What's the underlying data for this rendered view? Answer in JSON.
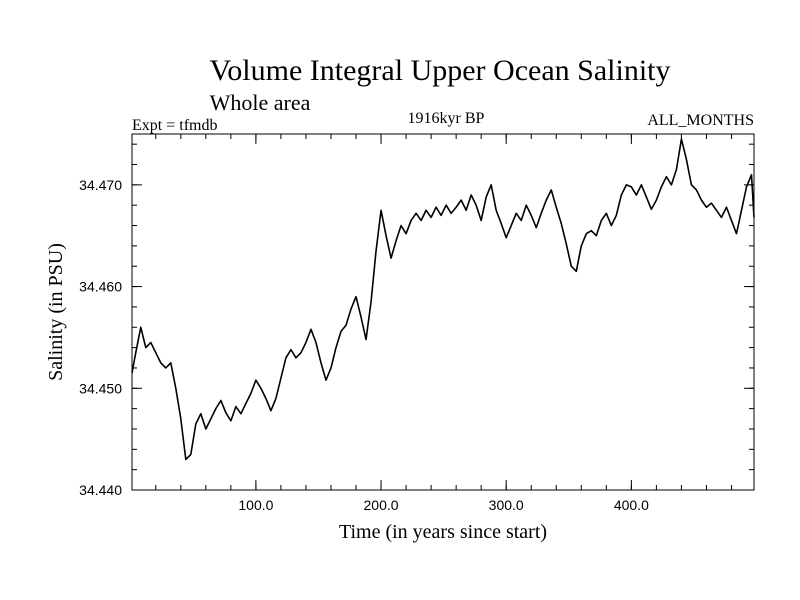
{
  "chart_data": {
    "type": "line",
    "title": "Volume Integral Upper Ocean Salinity",
    "subtitle": "Whole area",
    "left_label": "Expt = tfmdb",
    "center_label": "1916kyr BP",
    "right_label": "ALL_MONTHS",
    "xlabel": "Time (in years since start)",
    "ylabel": "Salinity (in PSU)",
    "xlim": [
      1,
      498
    ],
    "ylim": [
      34.44,
      34.475
    ],
    "xticks": [
      100,
      200,
      300,
      400
    ],
    "xtick_labels": [
      "100.0",
      "200.0",
      "300.0",
      "400.0"
    ],
    "yticks": [
      34.44,
      34.45,
      34.46,
      34.47
    ],
    "ytick_labels": [
      "34.440",
      "34.450",
      "34.460",
      "34.470"
    ],
    "series": [
      {
        "name": "salinity",
        "x": [
          1,
          4,
          8,
          12,
          16,
          20,
          24,
          28,
          32,
          36,
          40,
          44,
          48,
          52,
          56,
          60,
          64,
          68,
          72,
          76,
          80,
          84,
          88,
          92,
          96,
          100,
          104,
          108,
          112,
          116,
          120,
          124,
          128,
          132,
          136,
          140,
          144,
          148,
          152,
          156,
          160,
          164,
          168,
          172,
          176,
          180,
          184,
          188,
          192,
          196,
          200,
          204,
          208,
          212,
          216,
          220,
          224,
          228,
          232,
          236,
          240,
          244,
          248,
          252,
          256,
          260,
          264,
          268,
          272,
          276,
          280,
          284,
          288,
          292,
          296,
          300,
          304,
          308,
          312,
          316,
          320,
          324,
          328,
          332,
          336,
          340,
          344,
          348,
          352,
          356,
          360,
          364,
          368,
          372,
          376,
          380,
          384,
          388,
          392,
          396,
          400,
          404,
          408,
          412,
          416,
          420,
          424,
          428,
          432,
          436,
          440,
          444,
          448,
          452,
          456,
          460,
          464,
          468,
          472,
          476,
          480,
          484,
          488,
          492,
          496,
          498
        ],
        "values": [
          34.4515,
          34.4535,
          34.456,
          34.454,
          34.4545,
          34.4535,
          34.4525,
          34.452,
          34.4525,
          34.45,
          34.447,
          34.443,
          34.4435,
          34.4465,
          34.4475,
          34.446,
          34.447,
          34.448,
          34.4488,
          34.4476,
          34.4468,
          34.4482,
          34.4475,
          34.4485,
          34.4495,
          34.4508,
          34.45,
          34.449,
          34.4478,
          34.449,
          34.451,
          34.453,
          34.4538,
          34.453,
          34.4535,
          34.4545,
          34.4558,
          34.4545,
          34.4525,
          34.4508,
          34.452,
          34.454,
          34.4556,
          34.4562,
          34.4578,
          34.459,
          34.457,
          34.4548,
          34.4585,
          34.4635,
          34.4675,
          34.465,
          34.4628,
          34.4645,
          34.466,
          34.4652,
          34.4665,
          34.4672,
          34.4665,
          34.4675,
          34.4668,
          34.4678,
          34.467,
          34.468,
          34.4672,
          34.4678,
          34.4685,
          34.4675,
          34.469,
          34.468,
          34.4665,
          34.4688,
          34.47,
          34.4675,
          34.4662,
          34.4648,
          34.466,
          34.4672,
          34.4665,
          34.468,
          34.467,
          34.4658,
          34.4672,
          34.4685,
          34.4695,
          34.4678,
          34.4662,
          34.4642,
          34.462,
          34.4615,
          34.464,
          34.4652,
          34.4655,
          34.465,
          34.4665,
          34.4672,
          34.466,
          34.467,
          34.469,
          34.47,
          34.4698,
          34.469,
          34.47,
          34.4688,
          34.4676,
          34.4685,
          34.4698,
          34.4708,
          34.47,
          34.4715,
          34.4745,
          34.4725,
          34.47,
          34.4695,
          34.4685,
          34.4678,
          34.4682,
          34.4675,
          34.4668,
          34.4678,
          34.4665,
          34.4652,
          34.4675,
          34.4698,
          34.471,
          34.4668
        ]
      }
    ]
  }
}
